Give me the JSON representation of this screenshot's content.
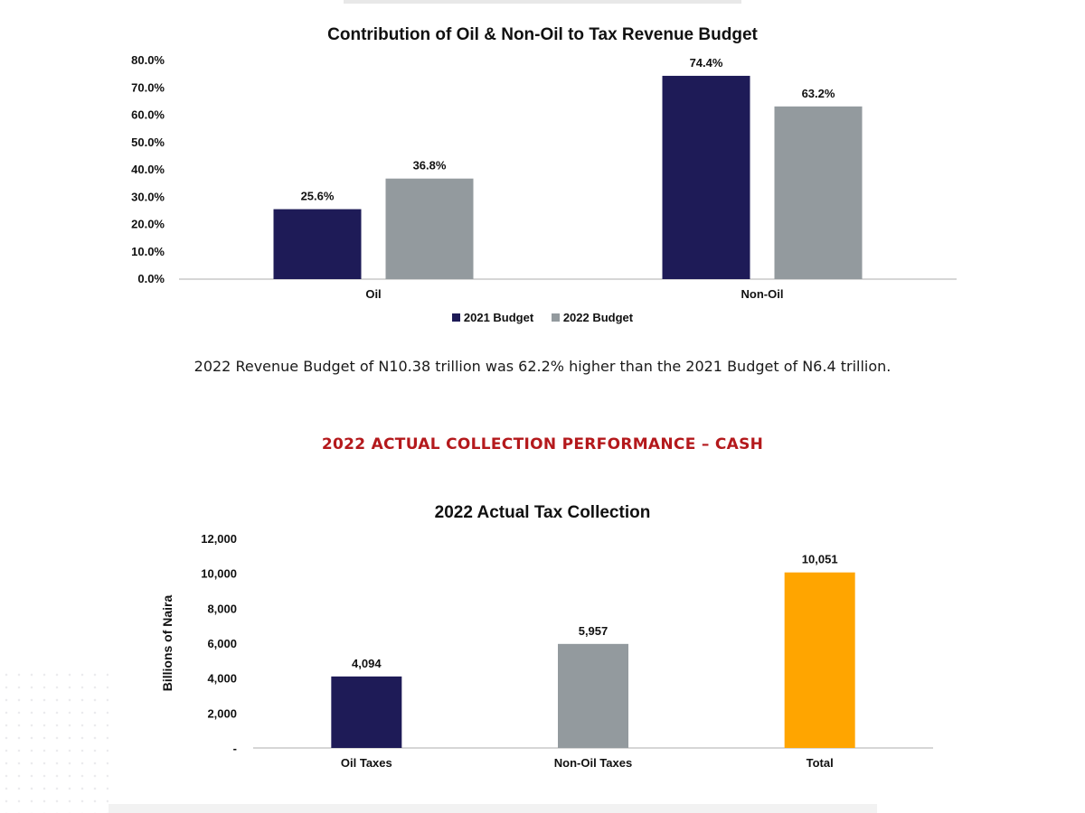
{
  "section_heading": "2022 ACTUAL COLLECTION PERFORMANCE – CASH",
  "summary_text": "2022 Revenue Budget of N10.38 trillion was 62.2% higher than the 2021 Budget of N6.4 trillion.",
  "colors": {
    "navy": "#1e1b57",
    "gray": "#939a9e",
    "orange": "#ffa500",
    "heading_red": "#b4191c"
  },
  "chart_data": [
    {
      "type": "bar",
      "title": "Contribution of Oil & Non-Oil to Tax Revenue Budget",
      "categories": [
        "Oil",
        "Non-Oil"
      ],
      "series": [
        {
          "name": "2021 Budget",
          "values": [
            25.6,
            74.4
          ],
          "labels": [
            "25.6%",
            "74.4%"
          ],
          "color": "#1e1b57"
        },
        {
          "name": "2022 Budget",
          "values": [
            36.8,
            63.2
          ],
          "labels": [
            "36.8%",
            "63.2%"
          ],
          "color": "#939a9e"
        }
      ],
      "ylim": [
        0,
        80
      ],
      "yticks": [
        0,
        10,
        20,
        30,
        40,
        50,
        60,
        70,
        80
      ],
      "ytick_labels": [
        "0.0%",
        "10.0%",
        "20.0%",
        "30.0%",
        "40.0%",
        "50.0%",
        "60.0%",
        "70.0%",
        "80.0%"
      ],
      "grid": false,
      "legend": "bottom"
    },
    {
      "type": "bar",
      "title": "2022 Actual Tax Collection",
      "ylabel": "Billions of Naira",
      "categories": [
        "Oil Taxes",
        "Non-Oil Taxes",
        "Total"
      ],
      "values": [
        4094,
        5957,
        10051
      ],
      "labels": [
        "4,094",
        "5,957",
        "10,051"
      ],
      "colors": [
        "#1e1b57",
        "#939a9e",
        "#ffa500"
      ],
      "ylim": [
        0,
        12000
      ],
      "yticks": [
        0,
        2000,
        4000,
        6000,
        8000,
        10000,
        12000
      ],
      "ytick_labels": [
        "-",
        "2,000",
        "4,000",
        "6,000",
        "8,000",
        "10,000",
        "12,000"
      ],
      "grid": false
    }
  ]
}
